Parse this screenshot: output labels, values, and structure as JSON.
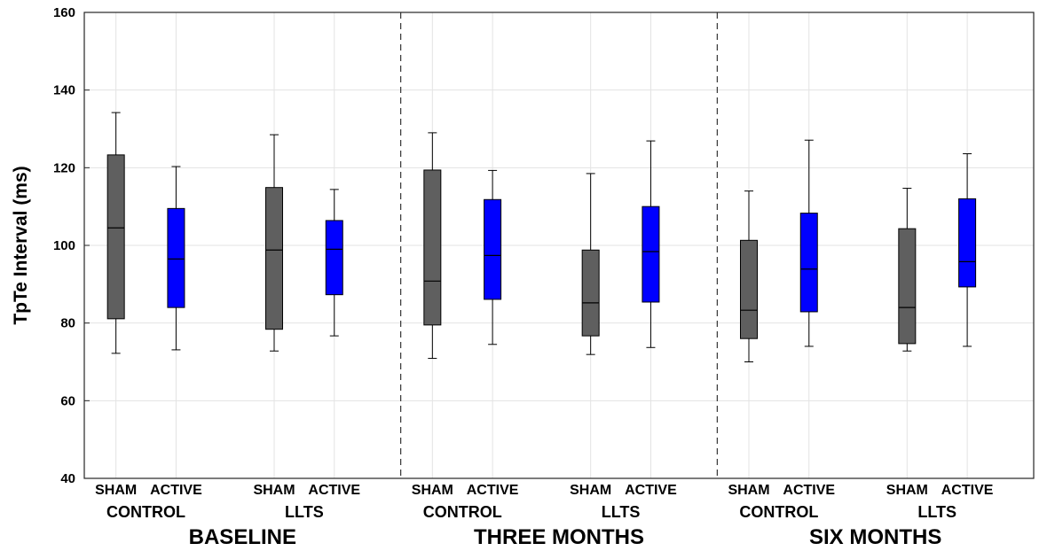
{
  "chart_data": {
    "type": "boxplot",
    "ylabel": "TpTe Interval (ms)",
    "ylim": [
      40,
      160
    ],
    "yticks": [
      40,
      60,
      80,
      100,
      120,
      140,
      160
    ],
    "grid": true,
    "colors": {
      "SHAM": "#5f5f5f",
      "ACTIVE": "#0000ff"
    },
    "periods": [
      "BASELINE",
      "THREE MONTHS",
      "SIX MONTHS"
    ],
    "groups": [
      "CONTROL",
      "LLTS"
    ],
    "treatments": [
      "SHAM",
      "ACTIVE"
    ],
    "boxes": [
      {
        "period": "BASELINE",
        "group": "CONTROL",
        "treatment": "SHAM",
        "min": 72.2,
        "q1": 81.1,
        "median": 104.5,
        "q3": 123.3,
        "max": 134.2
      },
      {
        "period": "BASELINE",
        "group": "CONTROL",
        "treatment": "ACTIVE",
        "min": 73.1,
        "q1": 84.0,
        "median": 96.5,
        "q3": 109.5,
        "max": 120.3
      },
      {
        "period": "BASELINE",
        "group": "LLTS",
        "treatment": "SHAM",
        "min": 72.8,
        "q1": 78.4,
        "median": 98.8,
        "q3": 114.9,
        "max": 128.5
      },
      {
        "period": "BASELINE",
        "group": "LLTS",
        "treatment": "ACTIVE",
        "min": 76.7,
        "q1": 87.3,
        "median": 99.0,
        "q3": 106.4,
        "max": 114.4
      },
      {
        "period": "THREE MONTHS",
        "group": "CONTROL",
        "treatment": "SHAM",
        "min": 70.9,
        "q1": 79.5,
        "median": 90.8,
        "q3": 119.4,
        "max": 129.0
      },
      {
        "period": "THREE MONTHS",
        "group": "CONTROL",
        "treatment": "ACTIVE",
        "min": 74.5,
        "q1": 86.1,
        "median": 97.4,
        "q3": 111.8,
        "max": 119.3
      },
      {
        "period": "THREE MONTHS",
        "group": "LLTS",
        "treatment": "SHAM",
        "min": 71.9,
        "q1": 76.7,
        "median": 85.2,
        "q3": 98.8,
        "max": 118.5
      },
      {
        "period": "THREE MONTHS",
        "group": "LLTS",
        "treatment": "ACTIVE",
        "min": 73.7,
        "q1": 85.4,
        "median": 98.4,
        "q3": 110.0,
        "max": 126.9
      },
      {
        "period": "SIX MONTHS",
        "group": "CONTROL",
        "treatment": "SHAM",
        "min": 70.0,
        "q1": 76.0,
        "median": 83.3,
        "q3": 101.3,
        "max": 114.0
      },
      {
        "period": "SIX MONTHS",
        "group": "CONTROL",
        "treatment": "ACTIVE",
        "min": 74.0,
        "q1": 82.9,
        "median": 93.9,
        "q3": 108.3,
        "max": 127.1
      },
      {
        "period": "SIX MONTHS",
        "group": "LLTS",
        "treatment": "SHAM",
        "min": 72.8,
        "q1": 74.7,
        "median": 84.0,
        "q3": 104.3,
        "max": 114.7
      },
      {
        "period": "SIX MONTHS",
        "group": "LLTS",
        "treatment": "ACTIVE",
        "min": 74.0,
        "q1": 89.3,
        "median": 95.8,
        "q3": 112.0,
        "max": 123.6
      }
    ]
  }
}
